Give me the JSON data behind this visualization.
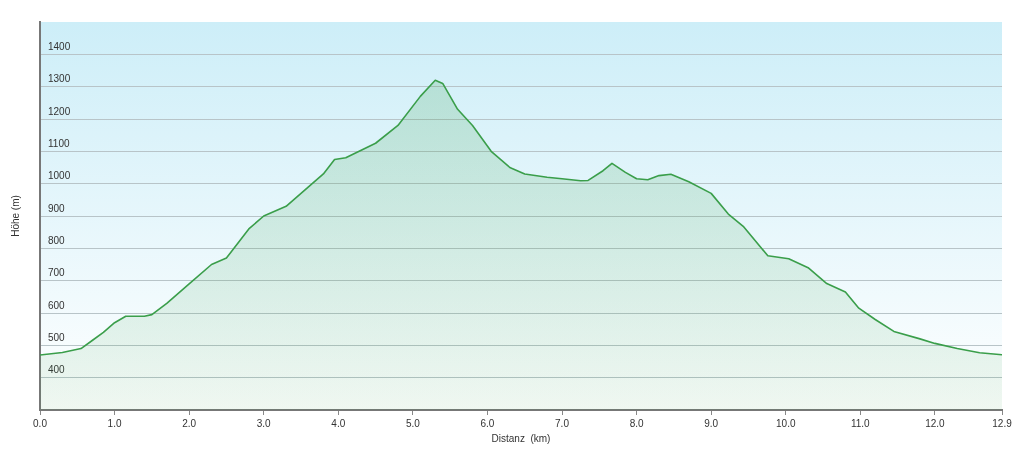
{
  "chart_data": {
    "type": "area",
    "xlabel": "Distanz  (km)",
    "ylabel": "Höhe (m)",
    "x": [
      0,
      0.3,
      0.55,
      0.7,
      0.85,
      1.0,
      1.15,
      1.4,
      1.5,
      1.7,
      2.0,
      2.3,
      2.5,
      2.8,
      3.0,
      3.3,
      3.6,
      3.8,
      3.95,
      4.1,
      4.5,
      4.8,
      5.1,
      5.3,
      5.4,
      5.6,
      5.8,
      6.05,
      6.3,
      6.5,
      6.8,
      7.0,
      7.25,
      7.35,
      7.55,
      7.67,
      7.85,
      8.0,
      8.15,
      8.3,
      8.46,
      8.7,
      9.0,
      9.23,
      9.43,
      9.76,
      10.04,
      10.3,
      10.55,
      10.8,
      10.98,
      11.2,
      11.45,
      11.8,
      12.0,
      12.3,
      12.6,
      12.9
    ],
    "series": [
      {
        "color": "#3a9e4a",
        "values": [
          470,
          478,
          490,
          515,
          540,
          570,
          590,
          590,
          595,
          630,
          690,
          750,
          770,
          860,
          900,
          930,
          990,
          1030,
          1075,
          1080,
          1125,
          1180,
          1270,
          1320,
          1310,
          1230,
          1180,
          1100,
          1050,
          1030,
          1020,
          1015,
          1009,
          1010,
          1040,
          1063,
          1035,
          1015,
          1012,
          1025,
          1029,
          1006,
          970,
          906,
          868,
          777,
          768,
          740,
          691,
          665,
          615,
          580,
          543,
          520,
          506,
          490,
          477,
          471
        ]
      }
    ],
    "xlim": [
      0,
      12.9
    ],
    "ylim": [
      300,
      1500
    ],
    "xticks": [
      {
        "value": 0,
        "label": "0.0"
      },
      {
        "value": 1,
        "label": "1.0"
      },
      {
        "value": 2,
        "label": "2.0"
      },
      {
        "value": 3,
        "label": "3.0"
      },
      {
        "value": 4,
        "label": "4.0"
      },
      {
        "value": 5,
        "label": "5.0"
      },
      {
        "value": 6,
        "label": "6.0"
      },
      {
        "value": 7,
        "label": "7.0"
      },
      {
        "value": 8,
        "label": "8.0"
      },
      {
        "value": 9,
        "label": "9.0"
      },
      {
        "value": 10,
        "label": "10.0"
      },
      {
        "value": 11,
        "label": "11.0"
      },
      {
        "value": 12,
        "label": "12.0"
      },
      12.9
    ],
    "yticks": [
      400,
      500,
      600,
      700,
      800,
      900,
      1000,
      1100,
      1200,
      1300,
      1400
    ],
    "grid": "y",
    "legend": false,
    "marker": "none",
    "line_style": "solid"
  }
}
